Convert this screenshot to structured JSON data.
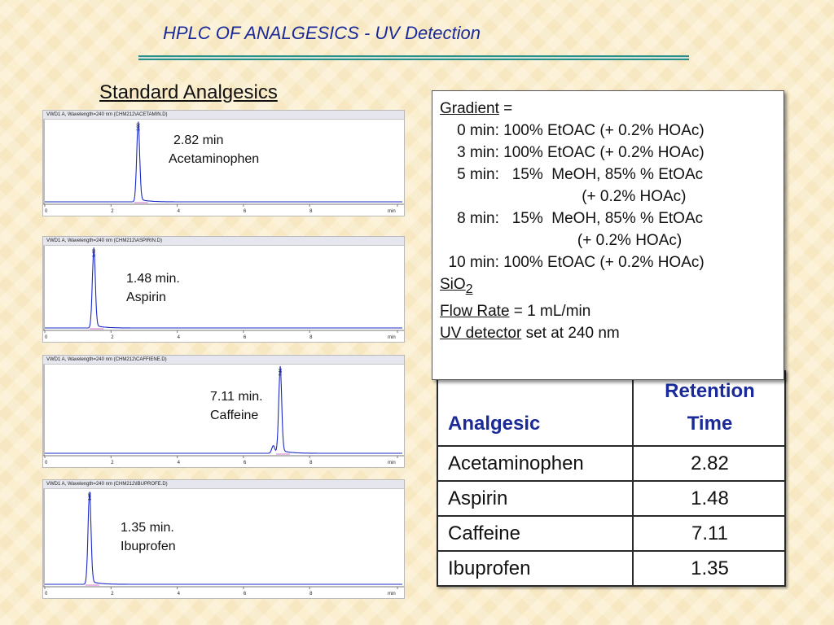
{
  "page_title": "HPLC OF ANALGESICS - UV Detection",
  "section_title": "Standard Analgesics",
  "colors": {
    "title": "#1a2a99",
    "trace": "#1a2ac8",
    "rule": "#2a8f86"
  },
  "chart_data": [
    {
      "type": "line",
      "header": "VWD1 A, Wavelength=240 nm (CHM212\\ACETAMIN.D)",
      "xlim": [
        0,
        10.8
      ],
      "x_ticks": [
        "0",
        "2",
        "4",
        "6",
        "8",
        "min"
      ],
      "peaks": [
        {
          "rt": 2.82,
          "height": 1.0
        }
      ],
      "annotation": {
        "time": "2.82 min",
        "name": "Acetaminophen"
      }
    },
    {
      "type": "line",
      "header": "VWD1 A, Wavelength=240 nm (CHM212\\ASPIRIN.D)",
      "xlim": [
        0,
        10.8
      ],
      "x_ticks": [
        "0",
        "2",
        "4",
        "6",
        "8",
        "min"
      ],
      "peaks": [
        {
          "rt": 1.48,
          "height": 1.0
        }
      ],
      "annotation": {
        "time": "1.48 min.",
        "name": "Aspirin"
      }
    },
    {
      "type": "line",
      "header": "VWD1 A, Wavelength=240 nm (CHM212\\CAFFIENE.D)",
      "xlim": [
        0,
        10.8
      ],
      "x_ticks": [
        "0",
        "2",
        "4",
        "6",
        "8",
        "min"
      ],
      "peaks": [
        {
          "rt": 6.9,
          "height": 0.09
        },
        {
          "rt": 7.11,
          "height": 1.0
        }
      ],
      "annotation": {
        "time": "7.11 min.",
        "name": "Caffeine"
      }
    },
    {
      "type": "line",
      "header": "VWD1 A, Wavelength=240 nm (CHM212\\IBUPROFE.D)",
      "xlim": [
        0,
        10.8
      ],
      "x_ticks": [
        "0",
        "2",
        "4",
        "6",
        "8",
        "min"
      ],
      "peaks": [
        {
          "rt": 1.35,
          "height": 1.0
        }
      ],
      "annotation": {
        "time": "1.35 min.",
        "name": "Ibuprofen"
      }
    }
  ],
  "gradient": {
    "label": "Gradient",
    "suffix": " =",
    "steps": [
      "    0 min: 100% EtOAC (+ 0.2% HOAc)",
      "    3 min: 100% EtOAC (+ 0.2% HOAc)",
      "    5 min:   15%  MeOH, 85% % EtOAc",
      "                                 (+ 0.2% HOAc)",
      "    8 min:   15%  MeOH, 85% % EtOAc",
      "                                (+ 0.2% HOAc)",
      "  10 min: 100% EtOAC (+ 0.2% HOAc)"
    ],
    "phase_main": "SiO",
    "phase_sub": "2",
    "flow_label": "Flow Rate",
    "flow_value": " = 1 mL/min",
    "uv_label": "UV detector",
    "uv_value": " set at 240 nm"
  },
  "table": {
    "headers": [
      "Analgesic",
      "Retention Time"
    ],
    "rows": [
      [
        "Acetaminophen",
        "2.82"
      ],
      [
        "Aspirin",
        "1.48"
      ],
      [
        "Caffeine",
        "7.11"
      ],
      [
        "Ibuprofen",
        "1.35"
      ]
    ]
  }
}
